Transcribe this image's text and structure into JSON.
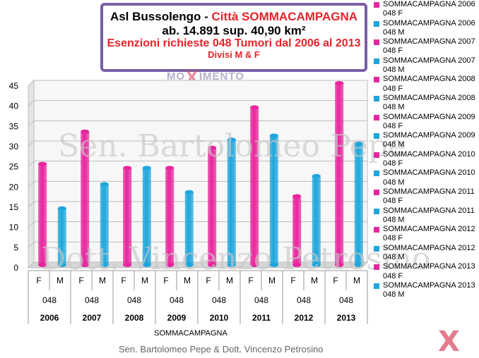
{
  "title": {
    "line1_prefix": "Asl Bussolengo - ",
    "line1_city": "Città SOMMACAMPAGNA",
    "line2": "ab. 14.891 sup. 40,90 km²",
    "line3": "Esenzioni richieste 048 Tumori  dal 2006 al 2013",
    "line4": "Divisi M & F"
  },
  "watermark_logo": {
    "part1": "MO",
    "x": "X",
    "part2": "IMENTO"
  },
  "watermarks": [
    "Sen. Bartolomeo Pepe",
    "Dott. Vincenzo Petrosino"
  ],
  "footer": "Sen. Bartolomeo Pepe &  Dott. Vincenzo Petrosino",
  "logo_x": "X",
  "colors": {
    "F": "#e8259e",
    "M": "#1da6dc"
  },
  "legend": [
    "SOMMACAMPAGNA 2006 048 F",
    "SOMMACAMPAGNA 2006 048 M",
    "SOMMACAMPAGNA 2007 048 F",
    "SOMMACAMPAGNA 2007 048 M",
    "SOMMACAMPAGNA 2008 048 F",
    "SOMMACAMPAGNA 2008 048 M",
    "SOMMACAMPAGNA 2009 048 F",
    "SOMMACAMPAGNA 2009 048 M",
    "SOMMACAMPAGNA 2010 048 F",
    "SOMMACAMPAGNA 2010 048 M",
    "SOMMACAMPAGNA 2011 048 F",
    "SOMMACAMPAGNA 2011 048 M",
    "SOMMACAMPAGNA 2012 048 F",
    "SOMMACAMPAGNA 2012 048 M",
    "SOMMACAMPAGNA 2013 048 F",
    "SOMMACAMPAGNA 2013 048 M"
  ],
  "chart_data": {
    "type": "bar",
    "xlabel": "SOMMACAMPAGNA",
    "ylim": [
      0,
      45
    ],
    "yticks": [
      0,
      5,
      10,
      15,
      20,
      25,
      30,
      35,
      40,
      45
    ],
    "grid": true,
    "years": [
      "2006",
      "2007",
      "2008",
      "2009",
      "2010",
      "2011",
      "2012",
      "2013"
    ],
    "code": "048",
    "sexes": [
      "F",
      "M"
    ],
    "values": [
      {
        "year": "2006",
        "sex": "F",
        "value": 25
      },
      {
        "year": "2006",
        "sex": "M",
        "value": 14
      },
      {
        "year": "2007",
        "sex": "F",
        "value": 33
      },
      {
        "year": "2007",
        "sex": "M",
        "value": 20
      },
      {
        "year": "2008",
        "sex": "F",
        "value": 24
      },
      {
        "year": "2008",
        "sex": "M",
        "value": 24
      },
      {
        "year": "2009",
        "sex": "F",
        "value": 24
      },
      {
        "year": "2009",
        "sex": "M",
        "value": 18
      },
      {
        "year": "2010",
        "sex": "F",
        "value": 29
      },
      {
        "year": "2010",
        "sex": "M",
        "value": 31
      },
      {
        "year": "2011",
        "sex": "F",
        "value": 39
      },
      {
        "year": "2011",
        "sex": "M",
        "value": 32
      },
      {
        "year": "2012",
        "sex": "F",
        "value": 17
      },
      {
        "year": "2012",
        "sex": "M",
        "value": 22
      },
      {
        "year": "2013",
        "sex": "F",
        "value": 45
      },
      {
        "year": "2013",
        "sex": "M",
        "value": 30
      }
    ]
  }
}
